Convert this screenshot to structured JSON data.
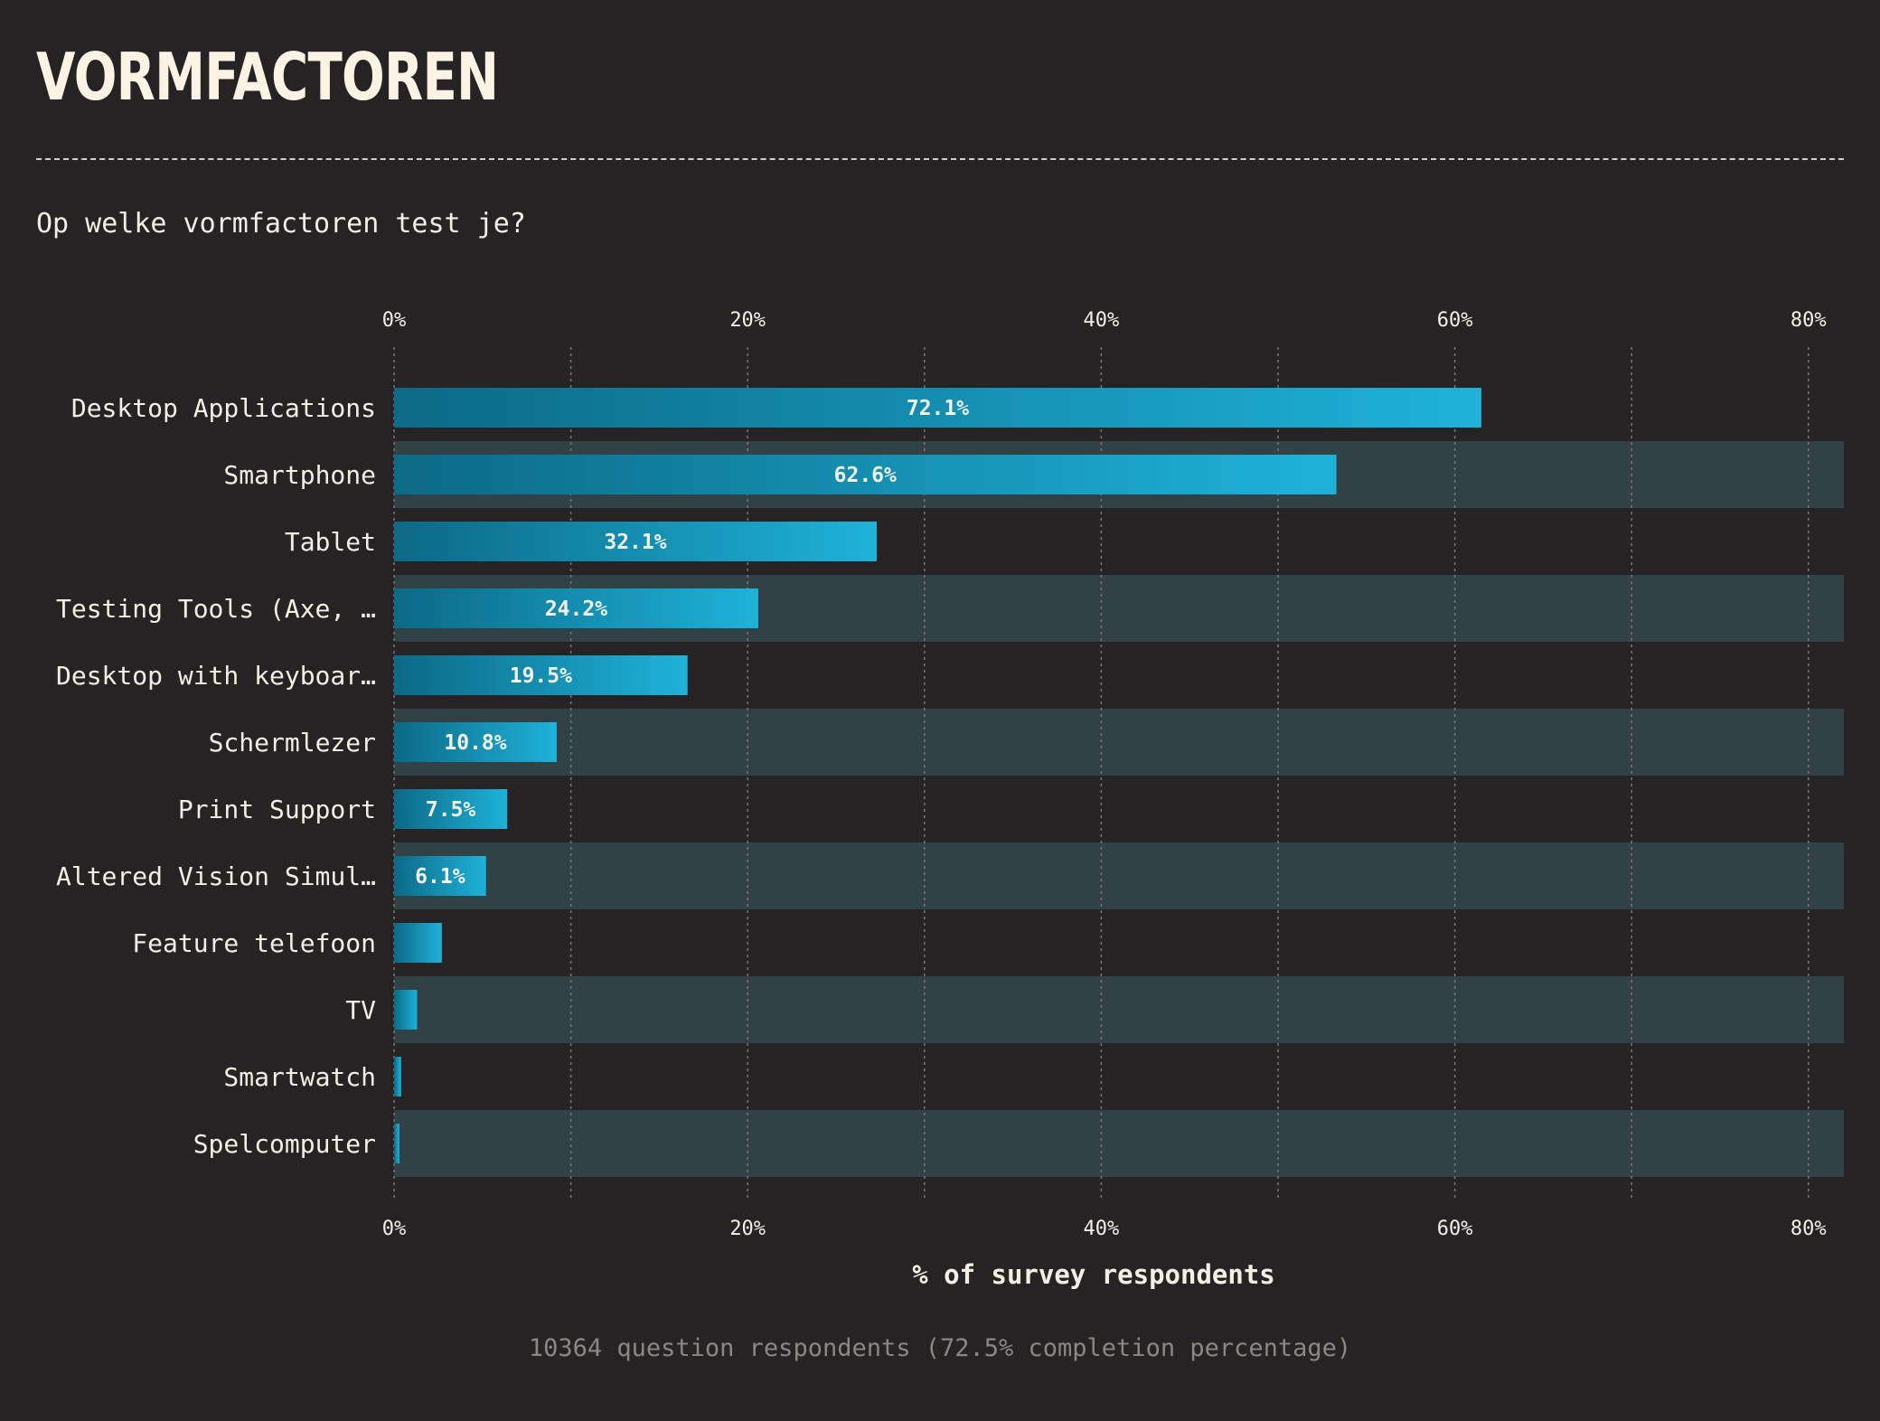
{
  "page": {
    "title": "VORMFACTOREN",
    "question": "Op welke vormfactoren test je?",
    "footer": "10364 question respondents (72.5% completion percentage)"
  },
  "colors": {
    "background": "#262325",
    "band": "#314247",
    "bar_start": "#0b6a86",
    "bar_end": "#1eb2d9",
    "text": "#f4efe6",
    "muted": "#8c8783"
  },
  "chart_data": {
    "type": "bar",
    "orientation": "horizontal",
    "categories": [
      "Desktop Applications",
      "Smartphone",
      "Tablet",
      "Testing Tools (Axe, …",
      "Desktop with keyboar…",
      "Schermlezer",
      "Print Support",
      "Altered Vision Simul…",
      "Feature telefoon",
      "TV",
      "Smartwatch",
      "Spelcomputer"
    ],
    "bar_lengths": [
      61.5,
      53.3,
      27.3,
      20.6,
      16.6,
      9.2,
      6.4,
      5.2,
      2.7,
      1.3,
      0.4,
      0.3
    ],
    "value_labels": [
      "72.1%",
      "62.6%",
      "32.1%",
      "24.2%",
      "19.5%",
      "10.8%",
      "7.5%",
      "6.1%",
      "",
      "",
      "",
      ""
    ],
    "xlabel": "% of survey respondents",
    "x_ticks": [
      "0%",
      "20%",
      "40%",
      "60%",
      "80%"
    ],
    "xlim": [
      0,
      82
    ],
    "grid": true,
    "minor_grid_step": 10
  }
}
